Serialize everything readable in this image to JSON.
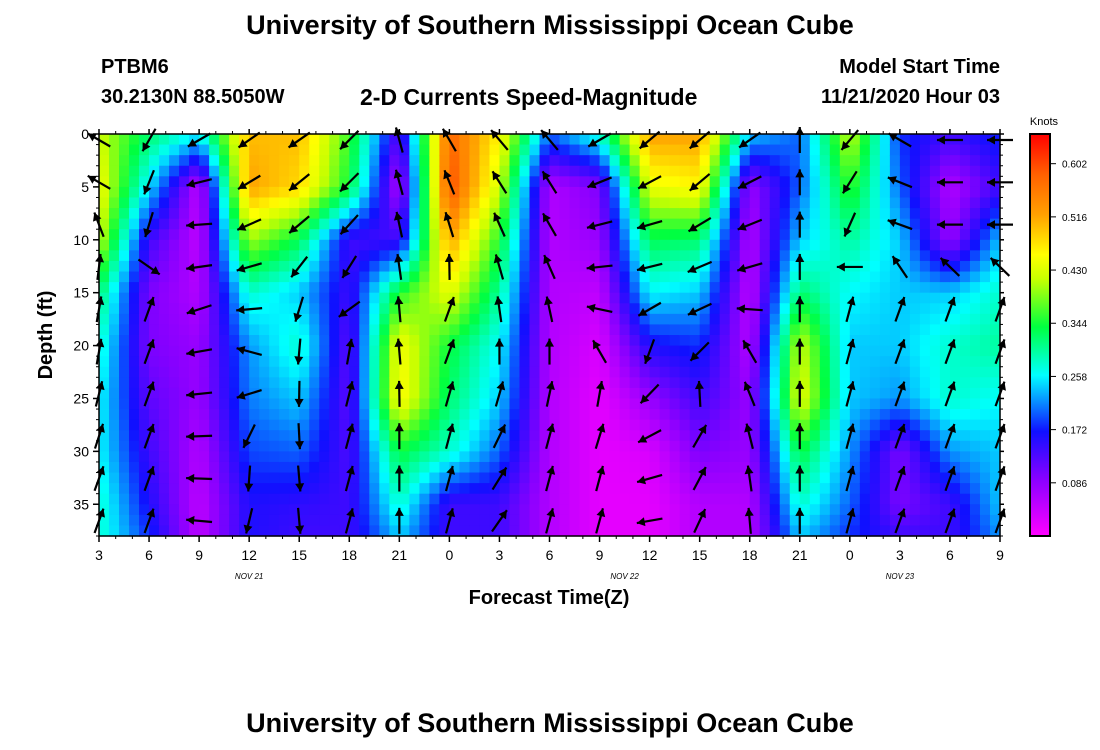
{
  "header": {
    "title": "University of Southern Mississippi Ocean Cube",
    "station_id": "PTBM6",
    "station_location": "30.2130N 88.5050W",
    "plot_title": "2-D Currents Speed-Magnitude",
    "model_start_label": "Model Start Time",
    "model_start_value": "11/21/2020 Hour 03"
  },
  "footer": {
    "title": "University of Southern Mississippi Ocean Cube"
  },
  "chart_data": {
    "type": "heatmap",
    "title": "2-D Currents Speed-Magnitude",
    "xlabel": "Forecast Time(Z)",
    "ylabel": "Depth (ft)",
    "x_tick_labels": [
      "3",
      "6",
      "9",
      "12",
      "15",
      "18",
      "21",
      "0",
      "3",
      "6",
      "9",
      "12",
      "15",
      "18",
      "21",
      "0",
      "3",
      "6",
      "9"
    ],
    "x_range_hours": [
      0,
      54
    ],
    "date_labels": [
      {
        "hour": 9,
        "label": "NOV 21"
      },
      {
        "hour": 31.5,
        "label": "NOV 22"
      },
      {
        "hour": 48,
        "label": "NOV 23"
      }
    ],
    "y_ticks": [
      0,
      5,
      10,
      15,
      20,
      25,
      30,
      35
    ],
    "y_range": [
      0,
      38
    ],
    "colorbar": {
      "unit_label": "Knots",
      "min": 0,
      "max": 0.65,
      "tick_values": [
        0.086,
        0.172,
        0.258,
        0.344,
        0.43,
        0.516,
        0.602
      ],
      "tick_labels": [
        "0.086",
        "0.172",
        "0.258",
        "0.344",
        "0.430",
        "0.516",
        "0.602"
      ]
    },
    "speed_columns": {
      "hours": [
        0,
        3,
        6,
        9,
        12,
        15,
        18,
        21,
        24,
        27,
        30,
        33,
        36,
        39,
        42,
        45,
        48,
        51,
        54
      ],
      "depths": [
        0,
        5,
        10,
        15,
        20,
        25,
        30,
        35,
        38
      ],
      "speed": [
        [
          0.42,
          0.45,
          0.42,
          0.32,
          0.28,
          0.26,
          0.26,
          0.28,
          0.28
        ],
        [
          0.32,
          0.25,
          0.14,
          0.1,
          0.1,
          0.12,
          0.14,
          0.16,
          0.18
        ],
        [
          0.26,
          0.05,
          0.05,
          0.06,
          0.08,
          0.08,
          0.06,
          0.05,
          0.05
        ],
        [
          0.5,
          0.52,
          0.4,
          0.28,
          0.22,
          0.21,
          0.19,
          0.16,
          0.16
        ],
        [
          0.5,
          0.48,
          0.33,
          0.24,
          0.28,
          0.24,
          0.2,
          0.15,
          0.14
        ],
        [
          0.36,
          0.34,
          0.14,
          0.14,
          0.12,
          0.12,
          0.13,
          0.14,
          0.14
        ],
        [
          0.12,
          0.06,
          0.14,
          0.35,
          0.45,
          0.46,
          0.34,
          0.28,
          0.24
        ],
        [
          0.58,
          0.6,
          0.52,
          0.44,
          0.34,
          0.32,
          0.28,
          0.14,
          0.14
        ],
        [
          0.46,
          0.42,
          0.35,
          0.3,
          0.26,
          0.24,
          0.2,
          0.14,
          0.14
        ],
        [
          0.2,
          0.06,
          0.06,
          0.06,
          0.06,
          0.06,
          0.06,
          0.06,
          0.06
        ],
        [
          0.28,
          0.1,
          0.08,
          0.05,
          0.03,
          0.02,
          0.02,
          0.02,
          0.02
        ],
        [
          0.52,
          0.44,
          0.33,
          0.26,
          0.16,
          0.08,
          0.03,
          0.02,
          0.02
        ],
        [
          0.52,
          0.46,
          0.32,
          0.24,
          0.18,
          0.14,
          0.1,
          0.06,
          0.06
        ],
        [
          0.24,
          0.08,
          0.06,
          0.05,
          0.06,
          0.08,
          0.08,
          0.06,
          0.06
        ],
        [
          0.2,
          0.2,
          0.24,
          0.32,
          0.42,
          0.44,
          0.34,
          0.28,
          0.24
        ],
        [
          0.42,
          0.36,
          0.3,
          0.26,
          0.24,
          0.24,
          0.22,
          0.2,
          0.18
        ],
        [
          0.18,
          0.2,
          0.24,
          0.24,
          0.24,
          0.22,
          0.1,
          0.1,
          0.14
        ],
        [
          0.14,
          0.06,
          0.08,
          0.24,
          0.28,
          0.28,
          0.22,
          0.14,
          0.14
        ],
        [
          0.18,
          0.14,
          0.24,
          0.28,
          0.3,
          0.26,
          0.24,
          0.24,
          0.22
        ]
      ]
    },
    "vector_columns": {
      "hours": [
        0,
        3,
        6,
        9,
        12,
        15,
        18,
        21,
        24,
        27,
        30,
        33,
        36,
        39,
        42,
        45,
        48,
        51,
        54
      ],
      "depths": [
        0,
        5,
        10,
        15,
        20,
        25,
        30,
        35,
        38
      ],
      "direction_deg": [
        [
          300,
          300,
          5,
          10,
          10,
          15,
          20,
          20,
          20
        ],
        [
          210,
          200,
          195,
          20,
          20,
          20,
          20,
          20,
          20
        ],
        [
          240,
          260,
          270,
          250,
          260,
          265,
          270,
          275,
          275
        ],
        [
          235,
          240,
          250,
          260,
          285,
          245,
          180,
          190,
          200
        ],
        [
          235,
          230,
          230,
          200,
          185,
          180,
          175,
          175,
          175
        ],
        [
          225,
          225,
          220,
          200,
          10,
          15,
          15,
          15,
          15
        ],
        [
          345,
          345,
          350,
          355,
          355,
          0,
          0,
          0,
          0
        ],
        [
          330,
          340,
          345,
          20,
          20,
          15,
          15,
          15,
          15
        ],
        [
          320,
          330,
          340,
          350,
          0,
          20,
          30,
          35,
          35
        ],
        [
          320,
          330,
          330,
          345,
          0,
          15,
          15,
          15,
          15
        ],
        [
          240,
          250,
          260,
          270,
          330,
          20,
          15,
          15,
          15
        ],
        [
          230,
          245,
          260,
          250,
          200,
          230,
          250,
          260,
          260
        ],
        [
          230,
          230,
          245,
          250,
          225,
          30,
          30,
          25,
          25
        ],
        [
          235,
          245,
          250,
          260,
          330,
          340,
          350,
          355,
          355
        ],
        [
          0,
          0,
          0,
          0,
          0,
          0,
          0,
          0,
          0
        ],
        [
          220,
          210,
          200,
          15,
          15,
          15,
          15,
          15,
          15
        ],
        [
          300,
          290,
          290,
          20,
          20,
          20,
          20,
          20,
          20
        ],
        [
          270,
          270,
          270,
          20,
          20,
          20,
          20,
          20,
          20
        ],
        [
          270,
          270,
          270,
          20,
          20,
          20,
          20,
          20,
          20
        ]
      ]
    }
  }
}
